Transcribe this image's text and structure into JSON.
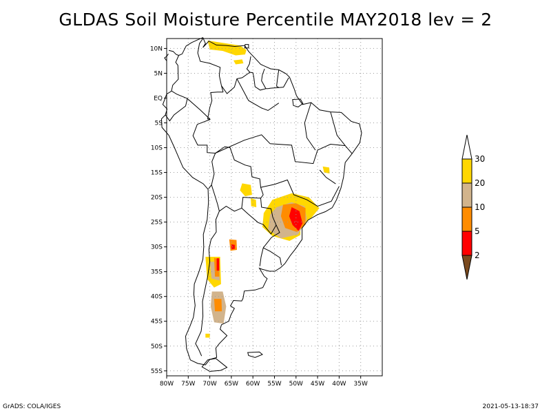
{
  "title": "GLDAS Soil Moisture Percentile MAY2018 lev = 2",
  "footer": {
    "left": "GrADS: COLA/IGES",
    "right": "2021-05-13-18:37"
  },
  "map": {
    "lon_range": [
      -80,
      -30
    ],
    "lat_range": [
      -56,
      12
    ],
    "lon_ticks": [
      {
        "lon": -80,
        "label": "80W"
      },
      {
        "lon": -75,
        "label": "75W"
      },
      {
        "lon": -70,
        "label": "70W"
      },
      {
        "lon": -65,
        "label": "65W"
      },
      {
        "lon": -60,
        "label": "60W"
      },
      {
        "lon": -55,
        "label": "55W"
      },
      {
        "lon": -50,
        "label": "50W"
      },
      {
        "lon": -45,
        "label": "45W"
      },
      {
        "lon": -40,
        "label": "40W"
      },
      {
        "lon": -35,
        "label": "35W"
      }
    ],
    "lat_ticks": [
      {
        "lat": 10,
        "label": "10N"
      },
      {
        "lat": 5,
        "label": "5N"
      },
      {
        "lat": 0,
        "label": "EQ"
      },
      {
        "lat": -5,
        "label": "5S"
      },
      {
        "lat": -10,
        "label": "10S"
      },
      {
        "lat": -15,
        "label": "15S"
      },
      {
        "lat": -20,
        "label": "20S"
      },
      {
        "lat": -25,
        "label": "25S"
      },
      {
        "lat": -30,
        "label": "30S"
      },
      {
        "lat": -35,
        "label": "35S"
      },
      {
        "lat": -40,
        "label": "40S"
      },
      {
        "lat": -45,
        "label": "45S"
      },
      {
        "lat": -50,
        "label": "50S"
      },
      {
        "lat": -55,
        "label": "55S"
      }
    ],
    "colors": {
      "below_2": "#7a4a1e",
      "2_5": "#ff0000",
      "5_10": "#ff8c00",
      "10_20": "#d2b48c",
      "20_30": "#ffd700",
      "above_30": "#ffffff"
    }
  },
  "colorbar": {
    "levels": [
      "2",
      "5",
      "10",
      "20",
      "30"
    ],
    "colors": [
      "#7a4a1e",
      "#ff0000",
      "#ff8c00",
      "#d2b48c",
      "#ffd700",
      "#ffffff"
    ]
  }
}
